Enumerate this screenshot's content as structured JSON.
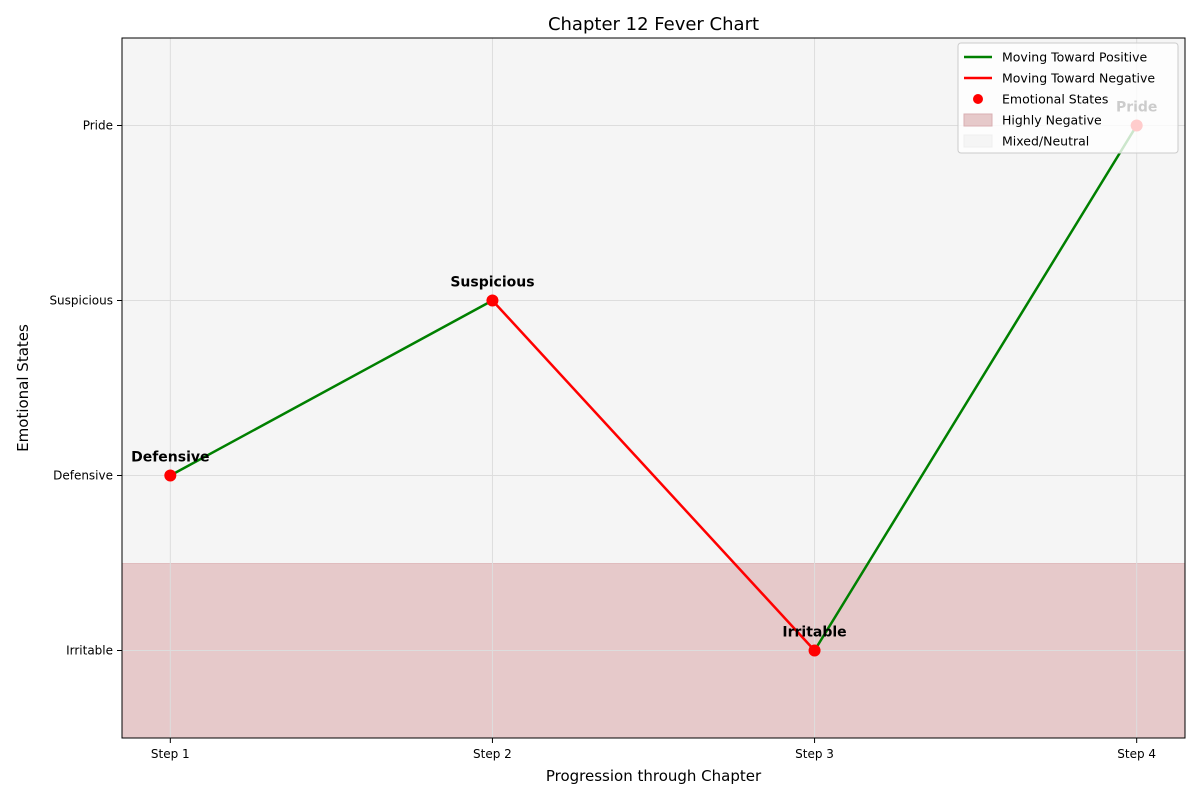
{
  "chart_data": {
    "type": "line",
    "title": "Chapter 12 Fever Chart",
    "xlabel": "Progression through Chapter",
    "ylabel": "Emotional States",
    "categories": [
      "Step 1",
      "Step 2",
      "Step 3",
      "Step 4"
    ],
    "y_levels": [
      "Irritable",
      "Defensive",
      "Suspicious",
      "Pride"
    ],
    "points": [
      {
        "x": "Step 1",
        "state": "Defensive",
        "y": 1
      },
      {
        "x": "Step 2",
        "state": "Suspicious",
        "y": 2
      },
      {
        "x": "Step 3",
        "state": "Irritable",
        "y": 0
      },
      {
        "x": "Step 4",
        "state": "Pride",
        "y": 3
      }
    ],
    "segments": [
      {
        "from": "Step 1",
        "to": "Step 2",
        "direction": "positive"
      },
      {
        "from": "Step 2",
        "to": "Step 3",
        "direction": "negative"
      },
      {
        "from": "Step 3",
        "to": "Step 4",
        "direction": "positive"
      }
    ],
    "ylim": [
      -0.5,
      3.5
    ],
    "regions": [
      {
        "name": "Highly Negative",
        "from": -0.5,
        "to": 0.5,
        "color": "#e6c9ca"
      },
      {
        "name": "Mixed/Neutral",
        "from": 0.5,
        "to": 3.5,
        "color": "#f5f5f5"
      }
    ],
    "colors": {
      "positive": "#008000",
      "negative": "#ff0000",
      "point": "#ff0000"
    },
    "legend": {
      "placement": "top-right",
      "entries": [
        {
          "label": "Moving Toward Positive",
          "kind": "line",
          "color": "#008000"
        },
        {
          "label": "Moving Toward Negative",
          "kind": "line",
          "color": "#ff0000"
        },
        {
          "label": "Emotional States",
          "kind": "marker",
          "color": "#ff0000"
        },
        {
          "label": "Highly Negative",
          "kind": "patch",
          "color": "#e6c9ca"
        },
        {
          "label": "Mixed/Neutral",
          "kind": "patch",
          "color": "#f5f5f5"
        }
      ]
    },
    "grid": true
  }
}
